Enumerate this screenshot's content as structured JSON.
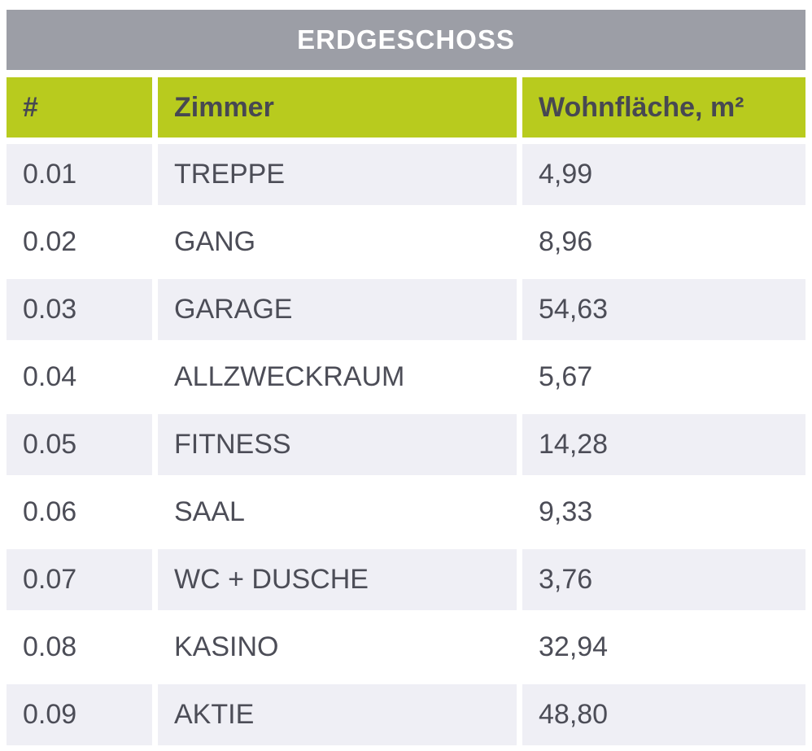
{
  "title": "ERDGESCHOSS",
  "headers": {
    "number": "#",
    "room": "Zimmer",
    "area": "Wohnfläche, m²"
  },
  "rows": [
    {
      "number": "0.01",
      "room": "TREPPE",
      "area": "4,99"
    },
    {
      "number": "0.02",
      "room": "GANG",
      "area": "8,96"
    },
    {
      "number": "0.03",
      "room": "GARAGE",
      "area": "54,63"
    },
    {
      "number": "0.04",
      "room": "ALLZWECKRAUM",
      "area": "5,67"
    },
    {
      "number": "0.05",
      "room": "FITNESS",
      "area": "14,28"
    },
    {
      "number": "0.06",
      "room": "SAAL",
      "area": "9,33"
    },
    {
      "number": "0.07",
      "room": "WC + DUSCHE",
      "area": "3,76"
    },
    {
      "number": "0.08",
      "room": "KASINO",
      "area": "32,94"
    },
    {
      "number": "0.09",
      "room": "AKTIE",
      "area": "48,80"
    }
  ],
  "colors": {
    "title_bg": "#9c9ea6",
    "header_bg": "#b8cb1e",
    "stripe_bg": "#efeff5",
    "text": "#4c4d57"
  }
}
